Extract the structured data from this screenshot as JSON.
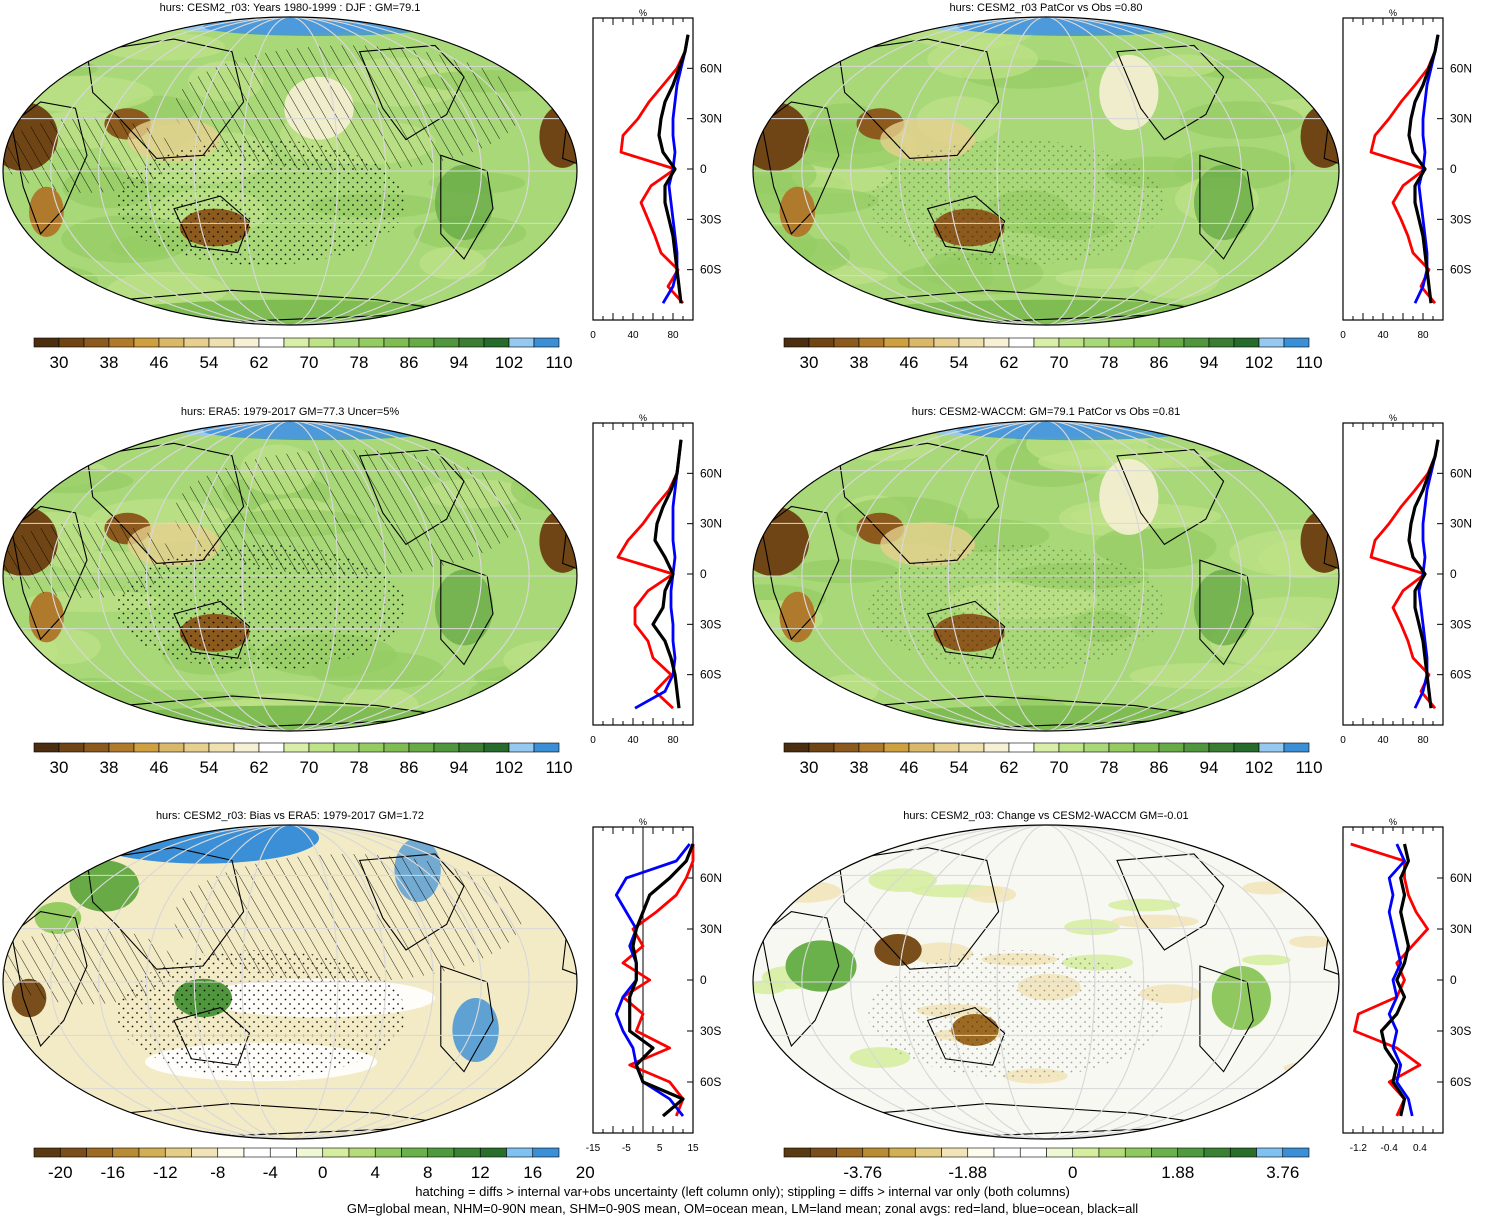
{
  "colors": {
    "land_red": "#ff0000",
    "ocean_blue": "#0000ff",
    "all_black": "#000000",
    "abs_scale": [
      "#4b2e10",
      "#704515",
      "#8c5a1d",
      "#b07a2c",
      "#cfa040",
      "#d9b86a",
      "#e6cf8f",
      "#efe0b0",
      "#f6f0d4",
      "#ffffff",
      "#d9efa8",
      "#bfe388",
      "#a8d878",
      "#94cc62",
      "#7fbd52",
      "#68ab46",
      "#4f963c",
      "#3a7d33",
      "#266b2c",
      "#95c9f0",
      "#3a8fd6"
    ],
    "diff_scale": [
      "#5a3a12",
      "#7a4e1a",
      "#9c6a22",
      "#b88c34",
      "#d2af55",
      "#e4cd86",
      "#f1e4b8",
      "#fdfbeb",
      "#ffffff",
      "#ffffff",
      "#eef8d4",
      "#d4ed9e",
      "#b4dc7a",
      "#8fc85f",
      "#6ab14c",
      "#4f9a3e",
      "#3a8134",
      "#2a6e2c",
      "#7fc1f0",
      "#3a8fd6"
    ]
  },
  "panels": [
    {
      "title": "hurs: CESM2_r03: Years 1980-1999 : DJF : GM=79.1",
      "colorbar_labels": [
        "30",
        "38",
        "46",
        "54",
        "62",
        "70",
        "78",
        "86",
        "94",
        "102",
        "110"
      ],
      "zonal_ticks": [
        "0",
        "40",
        "80"
      ],
      "zonal_unit": "%",
      "lat_labels": [
        "60N",
        "30N",
        "0",
        "30S",
        "60S"
      ]
    },
    {
      "title": "hurs: CESM2_r03 PatCor vs Obs =0.80",
      "colorbar_labels": [
        "30",
        "38",
        "46",
        "54",
        "62",
        "70",
        "78",
        "86",
        "94",
        "102",
        "110"
      ],
      "zonal_ticks": [
        "0",
        "40",
        "80"
      ],
      "zonal_unit": "%",
      "lat_labels": [
        "60N",
        "30N",
        "0",
        "30S",
        "60S"
      ]
    },
    {
      "title": "hurs: ERA5: 1979-2017 GM=77.3 Uncer=5%",
      "colorbar_labels": [
        "30",
        "38",
        "46",
        "54",
        "62",
        "70",
        "78",
        "86",
        "94",
        "102",
        "110"
      ],
      "zonal_ticks": [
        "0",
        "40",
        "80"
      ],
      "zonal_unit": "%",
      "lat_labels": [
        "60N",
        "30N",
        "0",
        "30S",
        "60S"
      ]
    },
    {
      "title": "hurs: CESM2-WACCM: GM=79.1 PatCor vs Obs =0.81",
      "colorbar_labels": [
        "30",
        "38",
        "46",
        "54",
        "62",
        "70",
        "78",
        "86",
        "94",
        "102",
        "110"
      ],
      "zonal_ticks": [
        "0",
        "40",
        "80"
      ],
      "zonal_unit": "%",
      "lat_labels": [
        "60N",
        "30N",
        "0",
        "30S",
        "60S"
      ]
    },
    {
      "title": "hurs: CESM2_r03: Bias vs ERA5: 1979-2017 GM=1.72",
      "colorbar_labels": [
        "-20",
        "-16",
        "-12",
        "-8",
        "-4",
        "0",
        "4",
        "8",
        "12",
        "16",
        "20"
      ],
      "zonal_ticks": [
        "-15",
        "-5",
        "5",
        "15"
      ],
      "zonal_unit": "%",
      "lat_labels": [
        "60N",
        "30N",
        "0",
        "30S",
        "60S"
      ]
    },
    {
      "title": "hurs: CESM2_r03: Change vs CESM2-WACCM GM=-0.01",
      "colorbar_labels": [
        "-3.76",
        "-1.88",
        "0",
        "1.88",
        "3.76"
      ],
      "zonal_ticks": [
        "-1.2",
        "-0.4",
        "0.4"
      ],
      "zonal_unit": "%",
      "lat_labels": [
        "60N",
        "30N",
        "0",
        "30S",
        "60S"
      ]
    }
  ],
  "footer": {
    "line1": "hatching = diffs > internal var+obs uncertainty (left column only); stippling = diffs > internal var only (both columns)",
    "line2": "GM=global mean, NHM=0-90N mean, SHM=0-90S mean, OM=ocean mean, LM=land mean; zonal avgs: red=land, blue=ocean, black=all"
  },
  "chart_data": [
    {
      "type": "line",
      "title": "hurs: CESM2_r03: Years 1980-1999 : DJF : GM=79.1",
      "xlabel": "%",
      "xlim": [
        0,
        100
      ],
      "ylim": [
        -90,
        90
      ],
      "y": [
        -80,
        -70,
        -60,
        -50,
        -40,
        -30,
        -20,
        -10,
        0,
        10,
        20,
        30,
        40,
        50,
        60,
        70,
        80
      ],
      "series": [
        {
          "name": "land",
          "color": "red",
          "values": [
            90,
            75,
            85,
            68,
            62,
            55,
            48,
            58,
            82,
            28,
            30,
            45,
            56,
            70,
            84,
            92,
            95
          ]
        },
        {
          "name": "ocean",
          "color": "blue",
          "values": [
            70,
            80,
            84,
            84,
            82,
            80,
            78,
            76,
            80,
            82,
            80,
            80,
            82,
            84,
            88,
            92,
            95
          ]
        },
        {
          "name": "all",
          "color": "black",
          "values": [
            88,
            86,
            84,
            82,
            80,
            76,
            72,
            72,
            82,
            70,
            66,
            68,
            72,
            80,
            86,
            92,
            95
          ]
        }
      ]
    },
    {
      "type": "line",
      "title": "hurs: CESM2_r03 PatCor vs Obs =0.80",
      "xlabel": "%",
      "xlim": [
        0,
        100
      ],
      "ylim": [
        -90,
        90
      ],
      "y": [
        -80,
        -70,
        -60,
        -50,
        -40,
        -30,
        -20,
        -10,
        0,
        10,
        20,
        30,
        40,
        50,
        60,
        70,
        80
      ],
      "series": [
        {
          "name": "land",
          "color": "red",
          "values": [
            92,
            78,
            86,
            70,
            65,
            58,
            50,
            60,
            82,
            28,
            32,
            46,
            58,
            72,
            85,
            92,
            95
          ]
        },
        {
          "name": "ocean",
          "color": "blue",
          "values": [
            72,
            80,
            84,
            84,
            82,
            80,
            78,
            76,
            80,
            82,
            80,
            80,
            82,
            84,
            88,
            92,
            95
          ]
        },
        {
          "name": "all",
          "color": "black",
          "values": [
            88,
            86,
            84,
            82,
            80,
            76,
            72,
            72,
            82,
            70,
            66,
            68,
            72,
            80,
            86,
            92,
            95
          ]
        }
      ]
    },
    {
      "type": "line",
      "title": "hurs: ERA5: 1979-2017 GM=77.3 Uncer=5%",
      "xlabel": "%",
      "xlim": [
        0,
        100
      ],
      "ylim": [
        -90,
        90
      ],
      "y": [
        -80,
        -70,
        -60,
        -50,
        -40,
        -30,
        -20,
        -10,
        0,
        10,
        20,
        30,
        40,
        50,
        60,
        70,
        80
      ],
      "series": [
        {
          "name": "land",
          "color": "red",
          "values": [
            80,
            62,
            78,
            60,
            55,
            42,
            42,
            55,
            80,
            25,
            35,
            50,
            62,
            76,
            84,
            86,
            88
          ]
        },
        {
          "name": "ocean",
          "color": "blue",
          "values": [
            42,
            72,
            80,
            82,
            80,
            80,
            78,
            78,
            80,
            82,
            80,
            80,
            80,
            82,
            84,
            86,
            88
          ]
        },
        {
          "name": "all",
          "color": "black",
          "values": [
            86,
            84,
            82,
            78,
            72,
            60,
            70,
            72,
            80,
            72,
            62,
            64,
            70,
            78,
            84,
            86,
            88
          ]
        }
      ]
    },
    {
      "type": "line",
      "title": "hurs: CESM2-WACCM: GM=79.1 PatCor vs Obs =0.81",
      "xlabel": "%",
      "xlim": [
        0,
        100
      ],
      "ylim": [
        -90,
        90
      ],
      "y": [
        -80,
        -70,
        -60,
        -50,
        -40,
        -30,
        -20,
        -10,
        0,
        10,
        20,
        30,
        40,
        50,
        60,
        70,
        80
      ],
      "series": [
        {
          "name": "land",
          "color": "red",
          "values": [
            92,
            78,
            86,
            70,
            65,
            58,
            50,
            60,
            82,
            28,
            32,
            46,
            58,
            72,
            85,
            92,
            95
          ]
        },
        {
          "name": "ocean",
          "color": "blue",
          "values": [
            72,
            80,
            84,
            84,
            82,
            80,
            78,
            76,
            80,
            82,
            80,
            80,
            82,
            84,
            88,
            92,
            95
          ]
        },
        {
          "name": "all",
          "color": "black",
          "values": [
            88,
            86,
            84,
            82,
            80,
            76,
            72,
            72,
            82,
            70,
            66,
            68,
            72,
            80,
            86,
            92,
            95
          ]
        }
      ]
    },
    {
      "type": "line",
      "title": "hurs: CESM2_r03: Bias vs ERA5: 1979-2017 GM=1.72",
      "xlabel": "%",
      "xlim": [
        -15,
        15
      ],
      "ylim": [
        -90,
        90
      ],
      "y": [
        -80,
        -70,
        -60,
        -50,
        -40,
        -30,
        -20,
        -10,
        0,
        10,
        20,
        30,
        40,
        50,
        60,
        70,
        80
      ],
      "series": [
        {
          "name": "land",
          "color": "red",
          "values": [
            10,
            12,
            8,
            -4,
            8,
            -2,
            0,
            -6,
            2,
            -6,
            0,
            -3,
            4,
            10,
            13,
            15,
            15
          ]
        },
        {
          "name": "ocean",
          "color": "blue",
          "values": [
            12,
            8,
            0,
            -2,
            -3,
            -6,
            -8,
            -6,
            -2,
            -2,
            -4,
            -2,
            -5,
            -8,
            -5,
            10,
            14
          ]
        },
        {
          "name": "all",
          "color": "black",
          "values": [
            6,
            12,
            0,
            -2,
            3,
            -4,
            -4,
            -4,
            -2,
            -2,
            -3,
            -2,
            0,
            2,
            8,
            13,
            15
          ]
        }
      ]
    },
    {
      "type": "line",
      "title": "hurs: CESM2_r03: Change vs CESM2-WACCM GM=-0.01",
      "xlabel": "%",
      "xlim": [
        -1.6,
        1.0
      ],
      "ylim": [
        -90,
        90
      ],
      "y": [
        -80,
        -70,
        -60,
        -50,
        -40,
        -30,
        -20,
        -10,
        0,
        10,
        20,
        30,
        40,
        50,
        60,
        70,
        80
      ],
      "series": [
        {
          "name": "land",
          "color": "red",
          "values": [
            -0.2,
            0.0,
            -0.4,
            0.4,
            -0.2,
            -1.3,
            -1.2,
            -0.2,
            0.0,
            -0.2,
            0.2,
            0.6,
            0.3,
            0.1,
            0.0,
            0.0,
            -1.4
          ]
        },
        {
          "name": "ocean",
          "color": "blue",
          "values": [
            0.2,
            0.1,
            -0.2,
            -0.1,
            -0.3,
            -0.2,
            -0.4,
            -0.2,
            -0.3,
            -0.1,
            -0.2,
            -0.3,
            -0.4,
            -0.3,
            -0.4,
            0.0,
            -0.2
          ]
        },
        {
          "name": "all",
          "color": "black",
          "values": [
            -0.1,
            0.0,
            -0.3,
            -0.2,
            -0.5,
            -0.6,
            -0.2,
            0.0,
            -0.2,
            0.0,
            0.1,
            0.0,
            -0.1,
            0.0,
            -0.1,
            0.1,
            0.0
          ]
        }
      ]
    }
  ]
}
